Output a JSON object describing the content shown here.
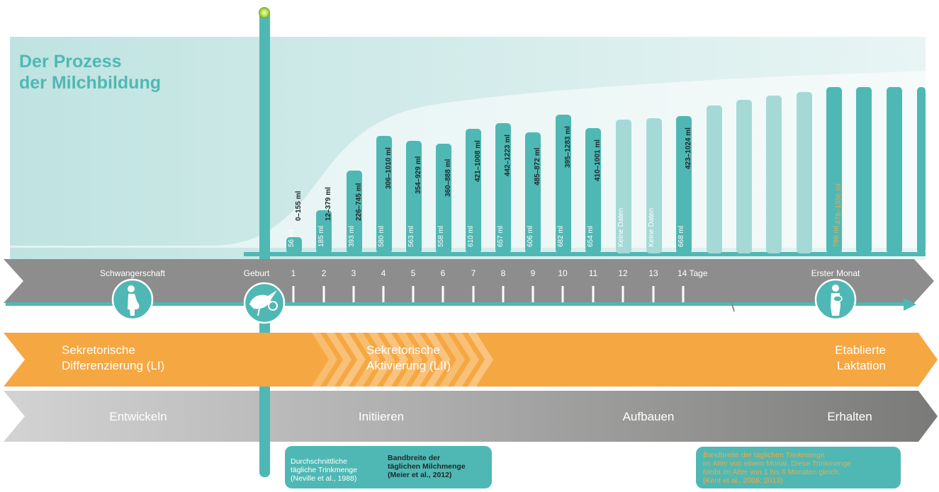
{
  "title": {
    "line1": "Der Prozess",
    "line2": "der Milchbildung"
  },
  "timeline": {
    "pregnancy_label": "Schwangerschaft",
    "birth_label": "Geburt",
    "days": [
      "1",
      "2",
      "3",
      "4",
      "5",
      "6",
      "7",
      "8",
      "9",
      "10",
      "11",
      "12",
      "13",
      "14 Tage"
    ],
    "first_month_label": "Erster Monat"
  },
  "phases": {
    "secretory_differentiation": {
      "line1": "Sekretorische",
      "line2": "Differenzierung (LI)"
    },
    "secretory_activation": {
      "line1": "Sekretorische",
      "line2": "Aktivierung (LII)"
    },
    "established_lactation": {
      "line1": "Etablierte",
      "line2": "Laktation"
    }
  },
  "stages": [
    "Entwickeln",
    "Initiieren",
    "Aufbauen",
    "Erhalten"
  ],
  "chart_data": {
    "type": "bar",
    "categories": [
      "1",
      "2",
      "3",
      "4",
      "5",
      "6",
      "7",
      "8",
      "9",
      "10",
      "11",
      "12",
      "13",
      "14"
    ],
    "series": [
      {
        "name": "Durchschnittliche tägliche Trinkmenge",
        "labels": [
          "56 ml",
          "185 ml",
          "393 ml",
          "580 ml",
          "563 ml",
          "558 ml",
          "610 ml",
          "657 ml",
          "606 ml",
          "682 ml",
          "654 ml",
          "Keine Daten",
          "Keine Daten",
          "668 ml"
        ]
      },
      {
        "name": "Bandbreite der täglichen Milchmenge",
        "labels": [
          "0–155 ml",
          "12–379 ml",
          "226–745 ml",
          "306–1010 ml",
          "354–929 ml",
          "360–888 ml",
          "421–1008 ml",
          "442–1223 ml",
          "485–872 ml",
          "395–1283 ml",
          "410–1001 ml",
          "",
          "",
          "423–1024 ml"
        ]
      }
    ],
    "first_month": {
      "average": "786 ml",
      "range": "478–1356 ml"
    }
  },
  "legend": {
    "average": [
      "Durchschnittliche",
      "tägliche Trinkmenge",
      "(Neville et al., 1988)"
    ],
    "range": [
      "Bandbreite der",
      "täglichen Milchmenge",
      "(Meier et al., 2012)"
    ],
    "month": [
      "Bandbreite der täglichen Trinkmenge",
      "im Alter von einem Monat. Diese Trinkmenge",
      "bleibt im Alter von 1 bis 6 Monaten gleich.",
      "(Kent et al., 2006; 2013)"
    ]
  },
  "colors": {
    "teal": "#4fb8b4",
    "teal_light": "#a5d9d6",
    "orange": "#f5a741",
    "gray_band": "#8d8d8d",
    "dark_text": "#1d2a2a",
    "background_band": "#e3f2f2"
  },
  "icons": [
    "pregnant-woman-icon",
    "stork-baby-icon",
    "mother-with-baby-icon"
  ]
}
